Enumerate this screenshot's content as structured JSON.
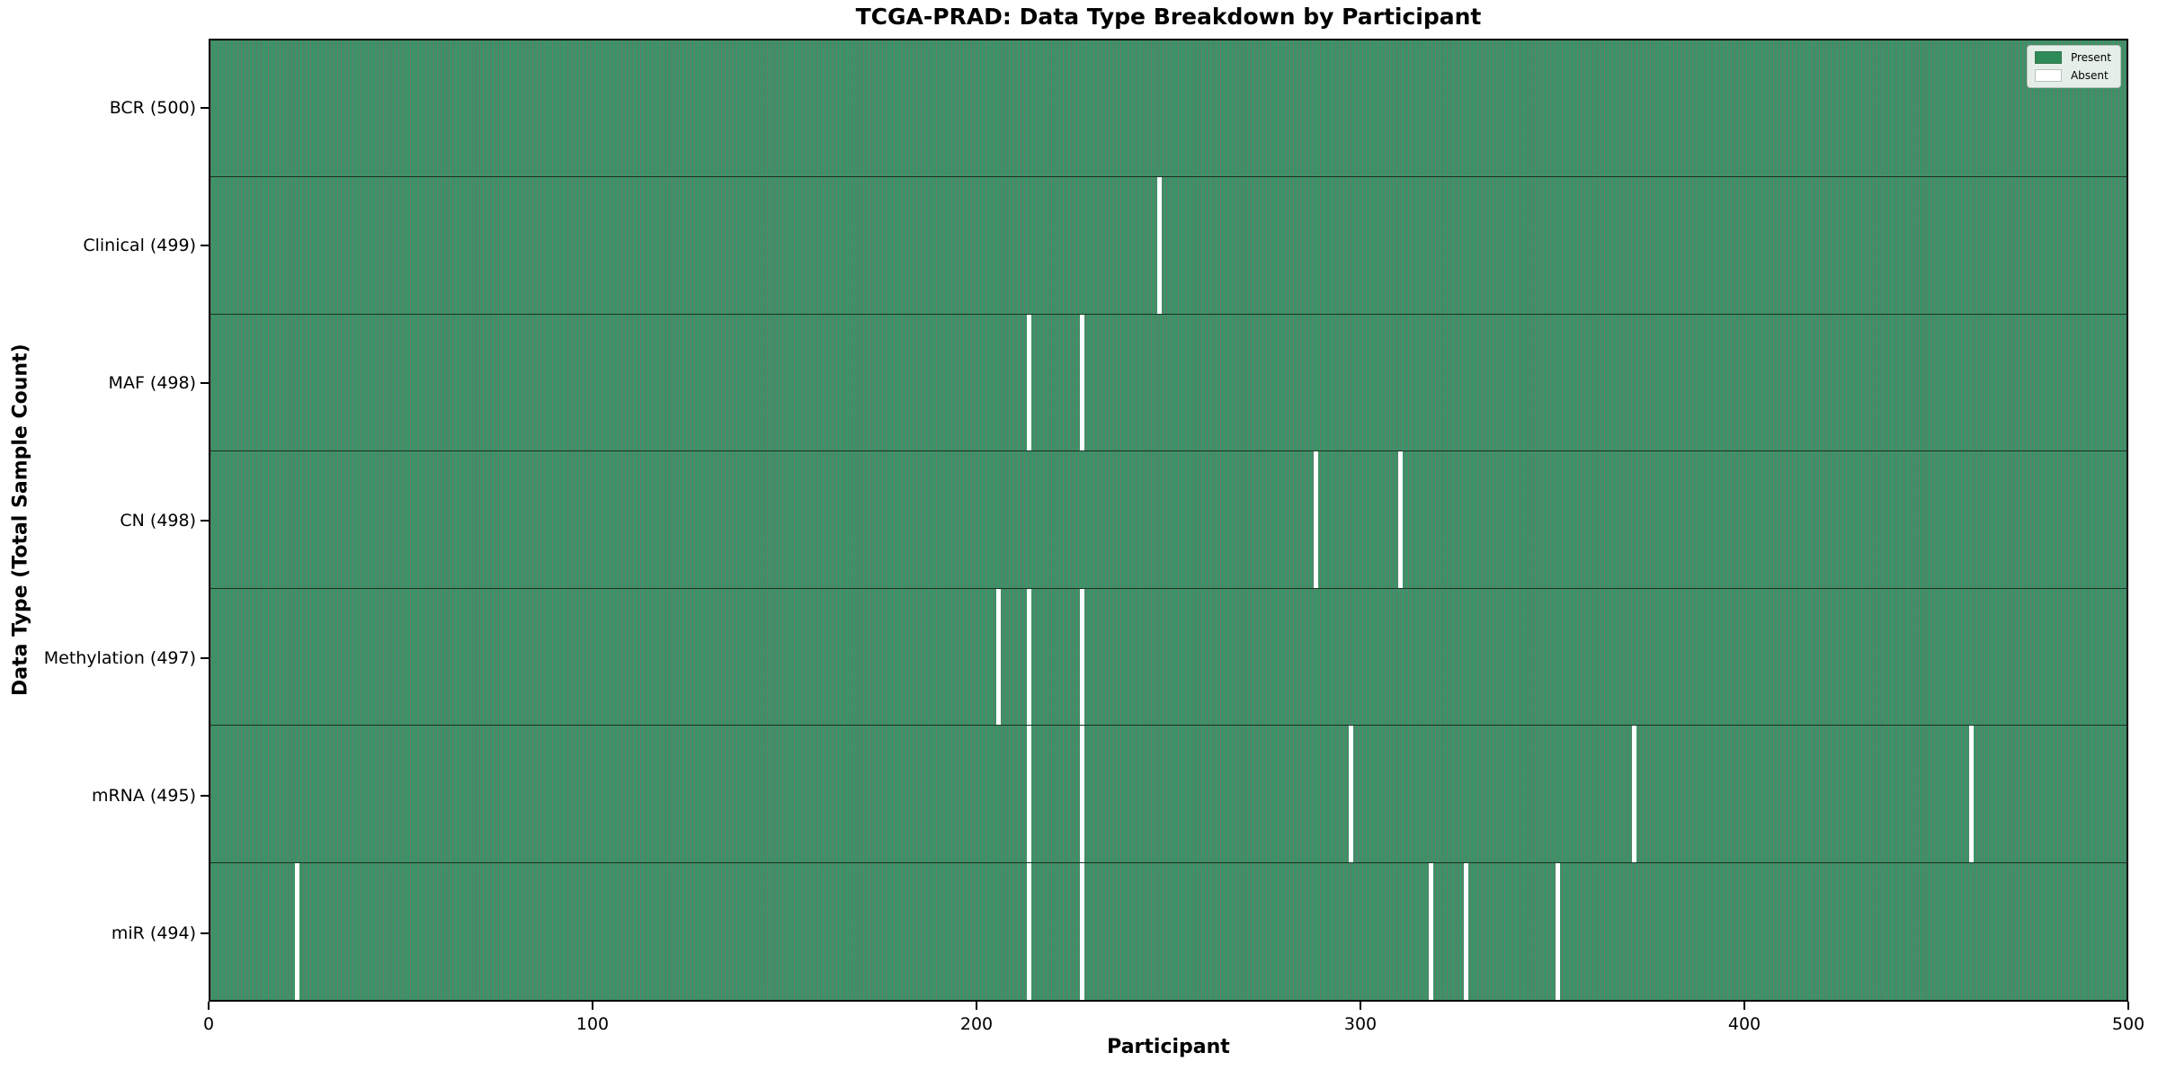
{
  "chart_data": {
    "type": "heatmap",
    "title": "TCGA-PRAD: Data Type Breakdown by Participant",
    "xlabel": "Participant",
    "ylabel": "Data Type (Total Sample Count)",
    "x_range": [
      0,
      500
    ],
    "x_ticks": [
      0,
      100,
      200,
      300,
      400,
      500
    ],
    "n_participants": 500,
    "grid": false,
    "legend": {
      "position": "upper right",
      "entries": [
        {
          "label": "Present",
          "color": "#2e8b57"
        },
        {
          "label": "Absent",
          "color": "#ffffff"
        }
      ]
    },
    "rows": [
      {
        "data_type": "BCR",
        "label": "BCR (500)",
        "total": 500,
        "absent_participants": []
      },
      {
        "data_type": "Clinical",
        "label": "Clinical (499)",
        "total": 499,
        "absent_participants": [
          247
        ]
      },
      {
        "data_type": "MAF",
        "label": "MAF (498)",
        "total": 498,
        "absent_participants": [
          213,
          227
        ]
      },
      {
        "data_type": "CN",
        "label": "CN (498)",
        "total": 498,
        "absent_participants": [
          288,
          310
        ]
      },
      {
        "data_type": "Methylation",
        "label": "Methylation (497)",
        "total": 497,
        "absent_participants": [
          205,
          213,
          227
        ]
      },
      {
        "data_type": "mRNA",
        "label": "mRNA (495)",
        "total": 495,
        "absent_participants": [
          213,
          227,
          297,
          371,
          459
        ]
      },
      {
        "data_type": "miR",
        "label": "miR (494)",
        "total": 494,
        "absent_participants": [
          22,
          213,
          227,
          318,
          327,
          351
        ]
      }
    ],
    "colors": {
      "present": "#2e8b57",
      "bar_fill": "#3a9466",
      "bar_edge": "rgba(8, 34, 22, 0.62)",
      "absent": "#ffffff",
      "row_divider": "rgba(0, 0, 0, 0.65)",
      "plot_border": "#000000"
    }
  }
}
